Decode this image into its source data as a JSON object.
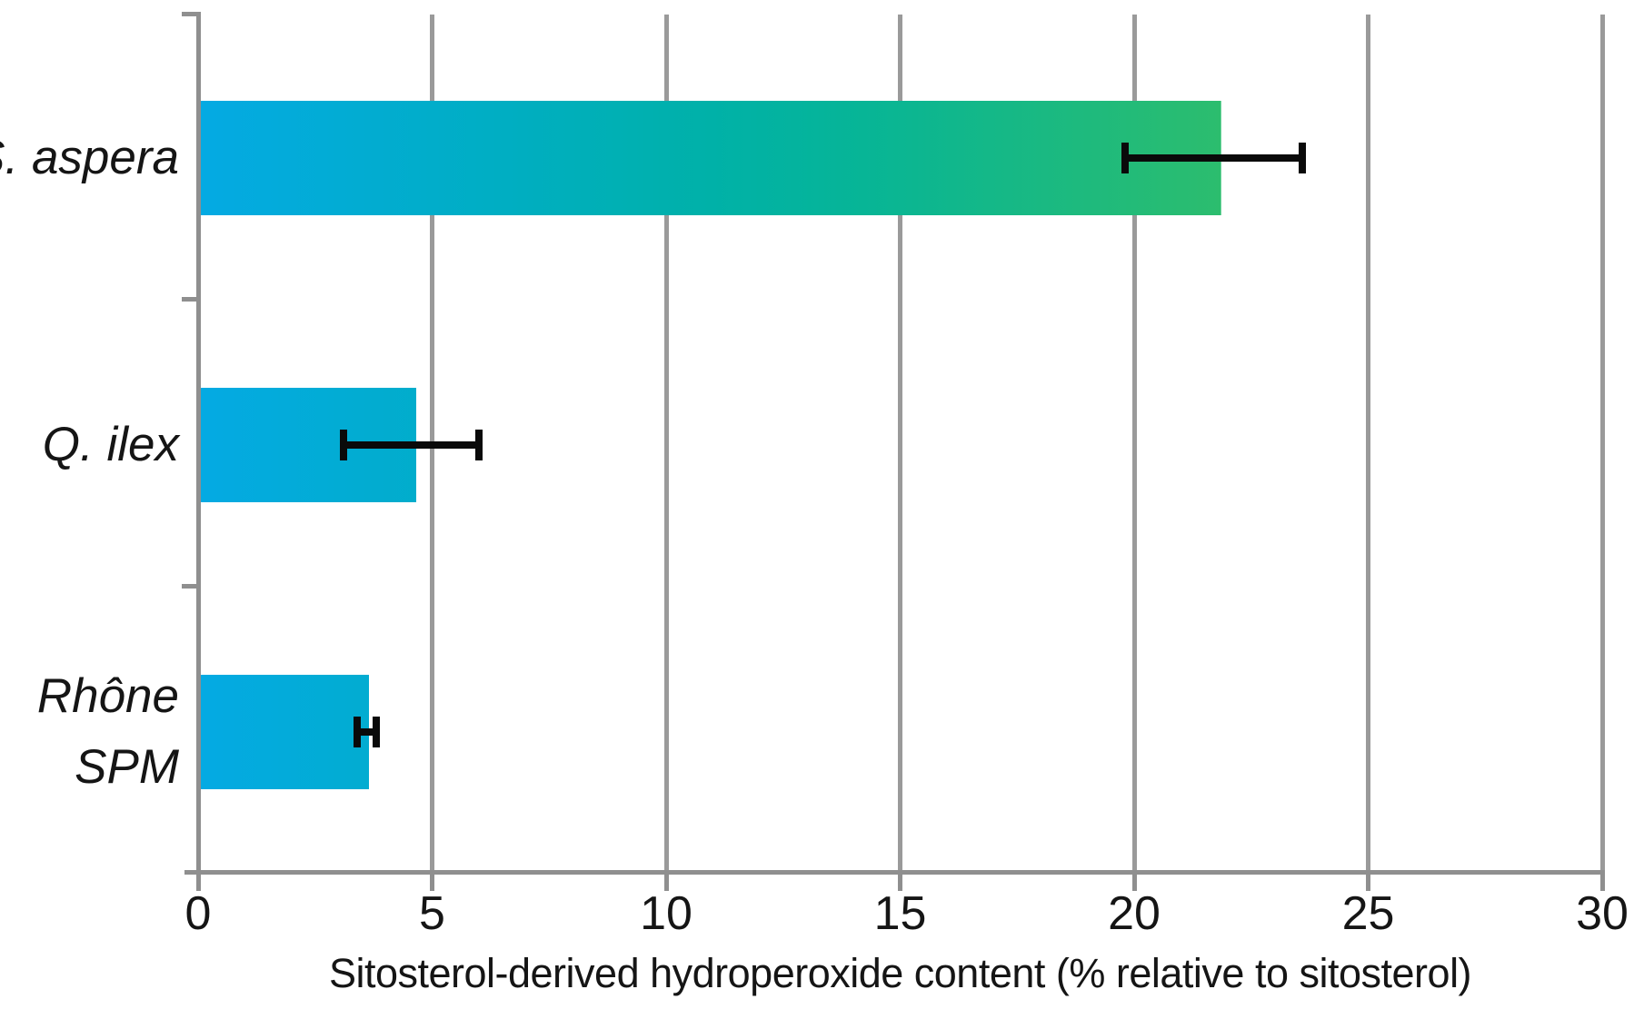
{
  "chart_data": {
    "type": "bar",
    "orientation": "horizontal",
    "title": "",
    "xlabel": "Sitosterol-derived hydroperoxide content (% relative to sitosterol)",
    "ylabel": "",
    "categories": [
      "S. aspera",
      "Q. ilex",
      "Rhône SPM"
    ],
    "category_label_lines": [
      [
        "S. aspera"
      ],
      [
        "Q. ilex"
      ],
      [
        "Rhône",
        "SPM"
      ]
    ],
    "values": [
      21.8,
      4.6,
      3.6
    ],
    "error_bars": [
      {
        "low": 19.8,
        "high": 23.6
      },
      {
        "low": 3.1,
        "high": 6.0
      },
      {
        "low": 3.4,
        "high": 3.8
      }
    ],
    "xlim": [
      0,
      30
    ],
    "xticks": [
      "0",
      "5",
      "10",
      "15",
      "20",
      "25",
      "30"
    ],
    "grid": "vertical gridlines at every 5 units",
    "legend": null,
    "category_labels_italic": true,
    "bar_gradient_stops": [
      "#04AAE3 0%",
      "#00AEC2 30%",
      "#00B1A8 50%",
      "#07B596 65%",
      "#2CBD6E 100%"
    ],
    "axis_color": "#8F8F8F",
    "gridline_color": "#9A9A9A",
    "error_bar_color": "#0A0A0A",
    "text_color": "#151515"
  }
}
